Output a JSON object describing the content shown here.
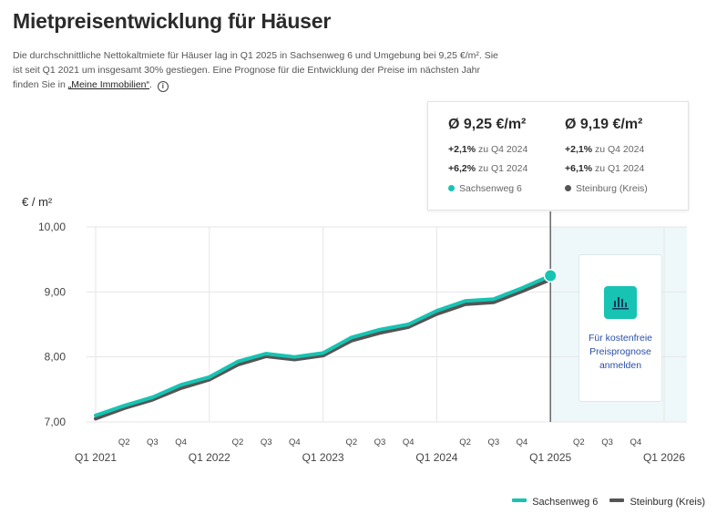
{
  "header": {
    "title": "Mietpreisentwicklung für Häuser",
    "desc_text": "Die durchschnittliche Nettokaltmiete für Häuser lag in Q1 2025 in Sachsenweg 6 und Umgebung bei 9,25 €/m². Sie ist seit Q1 2021 um insgesamt 30% gestiegen. Eine Prognose für die Entwicklung der Preise im nächsten Jahr finden Sie in ",
    "desc_link": "„Meine Immobilien“",
    "desc_end": ".",
    "info_icon": "i"
  },
  "tooltip": {
    "a": {
      "price": "Ø 9,25 €/m²",
      "c1": "+2,1%",
      "c1_label": "zu Q4 2024",
      "c2": "+6,2%",
      "c2_label": "zu Q1 2024",
      "legend": "Sachsenweg 6"
    },
    "b": {
      "price": "Ø 9,19 €/m²",
      "c1": "+2,1%",
      "c1_label": "zu Q4 2024",
      "c2": "+6,1%",
      "c2_label": "zu Q1 2024",
      "legend": "Steinburg (Kreis)"
    }
  },
  "promo": {
    "icon": "chart-icon",
    "text_l1": "Für kostenfreie",
    "text_l2": "Preisprognose",
    "text_l3": "anmelden"
  },
  "colors": {
    "teal": "#17c3b2",
    "dark": "#555555",
    "forecast_bg": "#eef8fa",
    "grid": "#e6e6e6"
  },
  "chart_data": {
    "type": "line",
    "ylabel": "€ / m²",
    "ylim": [
      7.0,
      10.0
    ],
    "y_ticks": [
      "7,00",
      "8,00",
      "9,00",
      "10,00"
    ],
    "x_ticks": [
      "Q1 2021",
      "Q2",
      "Q3",
      "Q4",
      "Q1 2022",
      "Q2",
      "Q3",
      "Q4",
      "Q1 2023",
      "Q2",
      "Q3",
      "Q4",
      "Q1 2024",
      "Q2",
      "Q3",
      "Q4",
      "Q1 2025",
      "Q2",
      "Q3",
      "Q4",
      "Q1 2026"
    ],
    "x": [
      "Q1 2021",
      "Q2 2021",
      "Q3 2021",
      "Q4 2021",
      "Q1 2022",
      "Q2 2022",
      "Q3 2022",
      "Q4 2022",
      "Q1 2023",
      "Q2 2023",
      "Q3 2023",
      "Q4 2023",
      "Q1 2024",
      "Q2 2024",
      "Q3 2024",
      "Q4 2024",
      "Q1 2025"
    ],
    "series": [
      {
        "name": "Sachsenweg 6",
        "color": "#17c3b2",
        "values": [
          7.1,
          7.25,
          7.38,
          7.57,
          7.69,
          7.93,
          8.05,
          8.0,
          8.06,
          8.3,
          8.42,
          8.5,
          8.71,
          8.86,
          8.89,
          9.06,
          9.25
        ]
      },
      {
        "name": "Steinburg (Kreis)",
        "color": "#555555",
        "values": [
          7.05,
          7.21,
          7.34,
          7.52,
          7.65,
          7.88,
          8.01,
          7.96,
          8.02,
          8.25,
          8.37,
          8.46,
          8.66,
          8.81,
          8.84,
          9.01,
          9.19
        ]
      }
    ],
    "forecast_from": "Q1 2025",
    "forecast_to": "Q1 2026",
    "highlight": "Q1 2025",
    "grid": true,
    "legend_position": "bottom-right"
  }
}
